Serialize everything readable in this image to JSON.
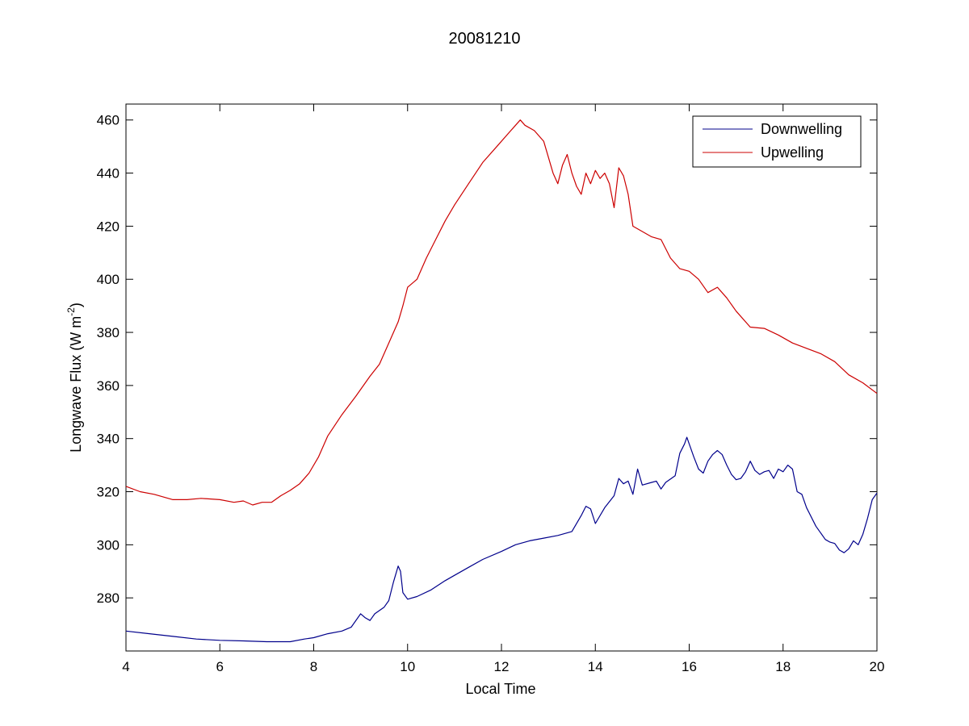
{
  "chart_data": {
    "type": "line",
    "title": "20081210",
    "xlabel": "Local Time",
    "ylabel_main": "Longwave Flux (W m",
    "ylabel_sup": "-2",
    "ylabel_close": ")",
    "xlim": [
      4,
      20
    ],
    "ylim": [
      260,
      466
    ],
    "xticks": [
      4,
      6,
      8,
      10,
      12,
      14,
      16,
      18,
      20
    ],
    "yticks": [
      280,
      300,
      320,
      340,
      360,
      380,
      400,
      420,
      440,
      460
    ],
    "grid": false,
    "legend_position": "top-right",
    "series": [
      {
        "name": "Downwelling",
        "color": "#00008b",
        "x": [
          4.0,
          4.5,
          5.0,
          5.5,
          6.0,
          6.5,
          7.0,
          7.5,
          7.8,
          8.0,
          8.3,
          8.6,
          8.8,
          9.0,
          9.1,
          9.2,
          9.3,
          9.5,
          9.6,
          9.7,
          9.8,
          9.85,
          9.9,
          10.0,
          10.2,
          10.5,
          10.8,
          11.0,
          11.3,
          11.6,
          12.0,
          12.3,
          12.6,
          12.9,
          13.2,
          13.5,
          13.7,
          13.8,
          13.9,
          14.0,
          14.2,
          14.4,
          14.5,
          14.6,
          14.7,
          14.8,
          14.9,
          15.0,
          15.2,
          15.3,
          15.4,
          15.5,
          15.7,
          15.8,
          15.9,
          15.95,
          16.0,
          16.1,
          16.2,
          16.3,
          16.4,
          16.5,
          16.6,
          16.7,
          16.8,
          16.9,
          17.0,
          17.1,
          17.2,
          17.3,
          17.4,
          17.5,
          17.6,
          17.7,
          17.8,
          17.9,
          18.0,
          18.1,
          18.2,
          18.3,
          18.4,
          18.5,
          18.7,
          18.9,
          19.0,
          19.1,
          19.2,
          19.3,
          19.4,
          19.5,
          19.6,
          19.7,
          19.8,
          19.9,
          20.0
        ],
        "y": [
          267.5,
          266.5,
          265.5,
          264.5,
          264.0,
          263.8,
          263.5,
          263.5,
          264.5,
          265.0,
          266.5,
          267.5,
          269.0,
          274.0,
          272.5,
          271.5,
          274.0,
          276.5,
          279.0,
          286.0,
          292.0,
          290.0,
          282.0,
          279.5,
          280.5,
          283.0,
          286.5,
          288.5,
          291.5,
          294.5,
          297.5,
          300.0,
          301.5,
          302.5,
          303.5,
          305.0,
          311.0,
          314.5,
          313.5,
          308.0,
          314.0,
          318.5,
          325.0,
          323.0,
          324.0,
          319.0,
          328.5,
          322.5,
          323.5,
          324.0,
          321.0,
          323.5,
          326.0,
          334.5,
          338.0,
          340.5,
          338.0,
          333.0,
          328.5,
          327.0,
          331.5,
          334.0,
          335.5,
          334.0,
          330.0,
          326.5,
          324.5,
          325.0,
          327.5,
          331.5,
          328.0,
          326.5,
          327.5,
          328.0,
          325.0,
          328.5,
          327.5,
          330.0,
          328.5,
          320.0,
          319.0,
          314.0,
          307.0,
          302.0,
          301.0,
          300.5,
          298.0,
          297.0,
          298.5,
          301.5,
          300.0,
          304.0,
          310.0,
          317.0,
          319.5
        ]
      },
      {
        "name": "Upwelling",
        "color": "#cc0000",
        "x": [
          4.0,
          4.3,
          4.6,
          5.0,
          5.3,
          5.6,
          6.0,
          6.3,
          6.5,
          6.7,
          6.9,
          7.1,
          7.3,
          7.5,
          7.7,
          7.9,
          8.1,
          8.3,
          8.6,
          8.9,
          9.2,
          9.4,
          9.6,
          9.8,
          9.9,
          10.0,
          10.2,
          10.4,
          10.6,
          10.8,
          11.0,
          11.3,
          11.6,
          11.9,
          12.2,
          12.4,
          12.5,
          12.7,
          12.9,
          13.0,
          13.1,
          13.2,
          13.3,
          13.4,
          13.5,
          13.6,
          13.7,
          13.8,
          13.9,
          14.0,
          14.1,
          14.2,
          14.3,
          14.4,
          14.5,
          14.6,
          14.7,
          14.8,
          15.0,
          15.2,
          15.4,
          15.6,
          15.8,
          16.0,
          16.2,
          16.4,
          16.6,
          16.8,
          17.0,
          17.3,
          17.6,
          17.9,
          18.2,
          18.5,
          18.8,
          19.1,
          19.4,
          19.7,
          20.0
        ],
        "y": [
          322.0,
          320.0,
          319.0,
          317.0,
          317.0,
          317.5,
          317.0,
          316.0,
          316.5,
          315.0,
          316.0,
          316.0,
          318.5,
          320.5,
          323.0,
          327.0,
          333.0,
          341.0,
          349.0,
          356.0,
          363.5,
          368.0,
          376.0,
          384.0,
          390.0,
          397.0,
          400.0,
          408.0,
          415.0,
          422.0,
          428.0,
          436.0,
          444.0,
          450.0,
          456.0,
          460.0,
          458.0,
          456.0,
          452.0,
          446.0,
          440.0,
          436.0,
          443.0,
          447.0,
          440.0,
          435.0,
          432.0,
          440.0,
          436.0,
          441.0,
          438.0,
          440.0,
          436.0,
          427.0,
          442.0,
          439.0,
          432.0,
          420.0,
          418.0,
          416.0,
          415.0,
          408.0,
          404.0,
          403.0,
          400.0,
          395.0,
          397.0,
          393.0,
          388.0,
          382.0,
          381.5,
          379.0,
          376.0,
          374.0,
          372.0,
          369.0,
          364.0,
          361.0,
          357.0
        ]
      }
    ]
  }
}
